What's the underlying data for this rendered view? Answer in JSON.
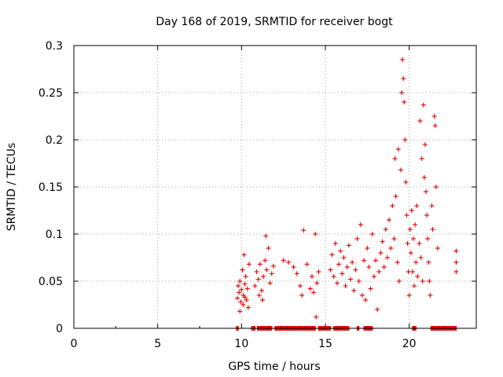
{
  "chart_data": {
    "type": "scatter",
    "title": "Day 168 of 2019, SRMTID for receiver bogt",
    "xlabel": "GPS time / hours",
    "ylabel": "SRMTID / TECUs",
    "xlim": [
      0,
      24
    ],
    "ylim": [
      0,
      0.3
    ],
    "xticks": [
      0,
      5,
      10,
      15,
      20
    ],
    "yticks": [
      0,
      0.05,
      0.1,
      0.15,
      0.2,
      0.25,
      0.3
    ],
    "xtick_labels": [
      "0",
      "5",
      "10",
      "15",
      "20"
    ],
    "ytick_labels": [
      "0",
      "0.05",
      "0.1",
      "0.15",
      "0.2",
      "0.25",
      "0.3"
    ],
    "grid": true,
    "marker": "+",
    "color": "#e00000",
    "series": [
      {
        "name": "SRMTID",
        "points": [
          [
            9.75,
            0.032
          ],
          [
            9.8,
            0.045
          ],
          [
            9.85,
            0.038
          ],
          [
            9.9,
            0.05
          ],
          [
            9.95,
            0.028
          ],
          [
            10.0,
            0.041
          ],
          [
            10.05,
            0.062
          ],
          [
            10.1,
            0.035
          ],
          [
            10.15,
            0.078
          ],
          [
            10.2,
            0.047
          ],
          [
            10.25,
            0.055
          ],
          [
            10.3,
            0.03
          ],
          [
            10.35,
            0.042
          ],
          [
            10.4,
            0.022
          ],
          [
            10.45,
            0.068
          ],
          [
            10.1,
            0.025
          ],
          [
            9.9,
            0.018
          ],
          [
            10.2,
            0.033
          ],
          [
            10.8,
            0.045
          ],
          [
            10.9,
            0.06
          ],
          [
            11.0,
            0.052
          ],
          [
            11.1,
            0.068
          ],
          [
            11.2,
            0.04
          ],
          [
            11.3,
            0.055
          ],
          [
            11.4,
            0.072
          ],
          [
            11.5,
            0.062
          ],
          [
            11.6,
            0.085
          ],
          [
            11.7,
            0.048
          ],
          [
            11.8,
            0.058
          ],
          [
            11.9,
            0.066
          ],
          [
            11.45,
            0.098
          ],
          [
            11.05,
            0.035
          ],
          [
            11.25,
            0.03
          ],
          [
            12.5,
            0.072
          ],
          [
            12.8,
            0.07
          ],
          [
            13.1,
            0.065
          ],
          [
            13.3,
            0.058
          ],
          [
            13.5,
            0.045
          ],
          [
            13.6,
            0.035
          ],
          [
            13.7,
            0.104
          ],
          [
            13.9,
            0.068
          ],
          [
            14.1,
            0.042
          ],
          [
            14.2,
            0.055
          ],
          [
            14.3,
            0.038
          ],
          [
            14.4,
            0.1
          ],
          [
            14.45,
            0.012
          ],
          [
            14.5,
            0.048
          ],
          [
            14.6,
            0.06
          ],
          [
            15.3,
            0.062
          ],
          [
            15.4,
            0.078
          ],
          [
            15.5,
            0.055
          ],
          [
            15.6,
            0.09
          ],
          [
            15.7,
            0.048
          ],
          [
            15.8,
            0.068
          ],
          [
            15.9,
            0.082
          ],
          [
            16.0,
            0.058
          ],
          [
            16.1,
            0.075
          ],
          [
            16.2,
            0.045
          ],
          [
            16.3,
            0.065
          ],
          [
            16.4,
            0.088
          ],
          [
            16.5,
            0.052
          ],
          [
            16.6,
            0.07
          ],
          [
            16.7,
            0.04
          ],
          [
            16.8,
            0.062
          ],
          [
            16.9,
            0.095
          ],
          [
            17.0,
            0.05
          ],
          [
            17.1,
            0.11
          ],
          [
            17.2,
            0.035
          ],
          [
            17.3,
            0.072
          ],
          [
            17.4,
            0.03
          ],
          [
            17.5,
            0.085
          ],
          [
            17.6,
            0.065
          ],
          [
            17.7,
            0.042
          ],
          [
            17.8,
            0.1
          ],
          [
            17.9,
            0.055
          ],
          [
            18.0,
            0.072
          ],
          [
            18.1,
            0.02
          ],
          [
            18.2,
            0.06
          ],
          [
            18.3,
            0.08
          ],
          [
            18.4,
            0.092
          ],
          [
            18.5,
            0.065
          ],
          [
            18.6,
            0.105
          ],
          [
            18.7,
            0.075
          ],
          [
            18.8,
            0.115
          ],
          [
            18.9,
            0.085
          ],
          [
            19.0,
            0.13
          ],
          [
            19.1,
            0.095
          ],
          [
            19.15,
            0.18
          ],
          [
            19.2,
            0.14
          ],
          [
            19.3,
            0.07
          ],
          [
            19.35,
            0.19
          ],
          [
            19.4,
            0.05
          ],
          [
            19.5,
            0.168
          ],
          [
            19.55,
            0.25
          ],
          [
            19.6,
            0.285
          ],
          [
            19.65,
            0.265
          ],
          [
            19.7,
            0.24
          ],
          [
            19.75,
            0.2
          ],
          [
            19.8,
            0.155
          ],
          [
            19.85,
            0.12
          ],
          [
            19.9,
            0.09
          ],
          [
            19.95,
            0.06
          ],
          [
            20.0,
            0.035
          ],
          [
            20.05,
            0.105
          ],
          [
            20.1,
            0.08
          ],
          [
            20.15,
            0.125
          ],
          [
            20.2,
            0.06
          ],
          [
            20.25,
            0.095
          ],
          [
            20.3,
            0.045
          ],
          [
            20.35,
            0.11
          ],
          [
            20.4,
            0.07
          ],
          [
            20.45,
            0.13
          ],
          [
            20.5,
            0.055
          ],
          [
            20.6,
            0.09
          ],
          [
            20.65,
            0.22
          ],
          [
            20.7,
            0.075
          ],
          [
            20.75,
            0.18
          ],
          [
            20.8,
            0.05
          ],
          [
            20.85,
            0.237
          ],
          [
            20.9,
            0.16
          ],
          [
            20.95,
            0.195
          ],
          [
            21.0,
            0.145
          ],
          [
            21.05,
            0.12
          ],
          [
            21.1,
            0.095
          ],
          [
            21.15,
            0.07
          ],
          [
            21.2,
            0.05
          ],
          [
            21.25,
            0.035
          ],
          [
            21.35,
            0.13
          ],
          [
            21.4,
            0.105
          ],
          [
            21.5,
            0.225
          ],
          [
            21.55,
            0.215
          ],
          [
            21.6,
            0.15
          ],
          [
            21.7,
            0.085
          ],
          [
            22.8,
            0.082
          ],
          [
            22.8,
            0.07
          ],
          [
            22.8,
            0.06
          ]
        ]
      }
    ],
    "zero_bands": [
      [
        9.7,
        9.8
      ],
      [
        10.6,
        10.8
      ],
      [
        10.95,
        11.8
      ],
      [
        12.0,
        14.4
      ],
      [
        14.6,
        15.3
      ],
      [
        15.5,
        16.4
      ],
      [
        16.9,
        17.0
      ],
      [
        17.3,
        17.8
      ],
      [
        20.2,
        20.4
      ],
      [
        21.3,
        22.8
      ]
    ]
  }
}
